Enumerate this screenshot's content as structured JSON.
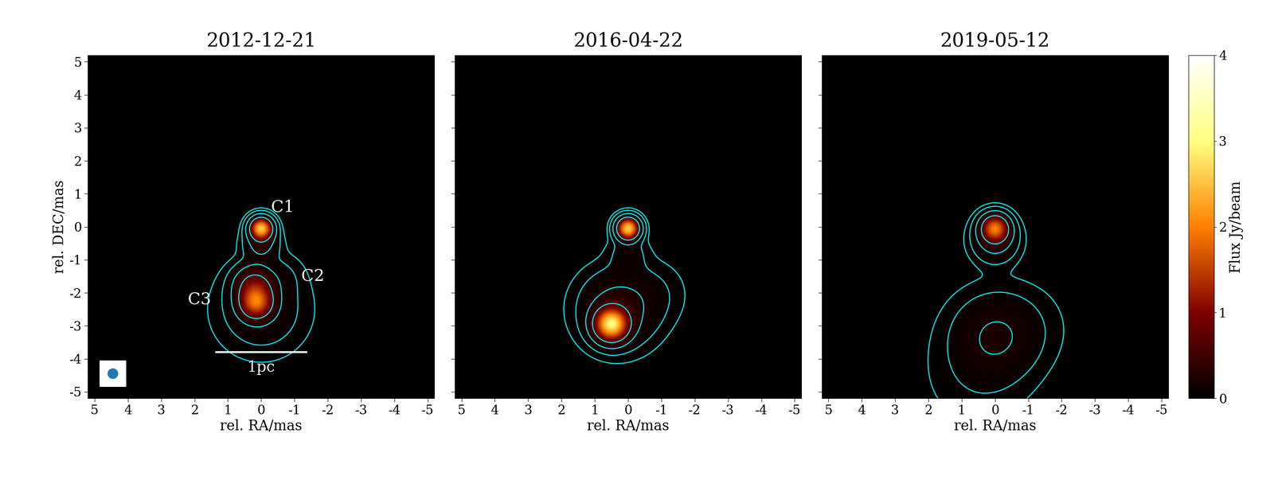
{
  "chart_data": {
    "type": "heatmap",
    "xlabel": "rel. RA/mas",
    "ylabel": "rel. DEC/mas",
    "xlim": [
      5.2,
      -5.2
    ],
    "ylim": [
      -5.2,
      5.2
    ],
    "xticks": [
      5,
      4,
      3,
      2,
      1,
      0,
      -1,
      -2,
      -3,
      -4,
      -5
    ],
    "yticks": [
      -5,
      -4,
      -3,
      -2,
      -1,
      0,
      1,
      2,
      3,
      4,
      5
    ],
    "contour_levels": [
      0.02,
      0.06,
      0.2,
      0.6
    ],
    "colorbar": {
      "label": "Flux Jy/beam",
      "range": [
        0,
        4
      ],
      "ticks": [
        0,
        1,
        2,
        3,
        4
      ]
    },
    "panels": [
      {
        "title": "2012-12-21",
        "tick_labels": true,
        "components": [
          {
            "x": 0.0,
            "y": -0.05,
            "flux": 2.5,
            "size": 0.2
          },
          {
            "x": 0.0,
            "y": -0.5,
            "flux": 0.3,
            "size": 0.3
          },
          {
            "x": 0.15,
            "y": -2.3,
            "flux": 1.6,
            "size": 0.3
          },
          {
            "x": 0.2,
            "y": -1.8,
            "flux": 0.8,
            "size": 0.35
          },
          {
            "x": 0.0,
            "y": -2.5,
            "flux": 0.15,
            "size": 0.8
          },
          {
            "x": -0.6,
            "y": -1.5,
            "flux": 0.05,
            "size": 0.4
          }
        ],
        "labels": [
          {
            "text": "C1",
            "x": -0.65,
            "y": 0.6
          },
          {
            "text": "C2",
            "x": -1.55,
            "y": -1.5
          },
          {
            "text": "C3",
            "x": 1.85,
            "y": -2.2
          }
        ],
        "scalebar": {
          "label": "1pc",
          "x": [
            1.35,
            -1.35
          ],
          "y": -3.8
        },
        "beam": {
          "x": 4.45,
          "y": -4.45,
          "size": 0.3
        }
      },
      {
        "title": "2016-04-22",
        "tick_labels": "x",
        "components": [
          {
            "x": 0.0,
            "y": -0.05,
            "flux": 2.6,
            "size": 0.2
          },
          {
            "x": 0.0,
            "y": -0.8,
            "flux": 0.1,
            "size": 0.35
          },
          {
            "x": 0.5,
            "y": -2.95,
            "flux": 2.8,
            "size": 0.3
          },
          {
            "x": 0.3,
            "y": -2.5,
            "flux": 0.3,
            "size": 0.7
          },
          {
            "x": -0.8,
            "y": -2.0,
            "flux": 0.05,
            "size": 0.6
          }
        ]
      },
      {
        "title": "2019-05-12",
        "tick_labels": "x",
        "components": [
          {
            "x": 0.0,
            "y": -0.05,
            "flux": 1.8,
            "size": 0.25
          },
          {
            "x": 0.0,
            "y": -0.4,
            "flux": 0.3,
            "size": 0.4
          },
          {
            "x": 0.0,
            "y": -3.3,
            "flux": 0.2,
            "size": 0.8
          },
          {
            "x": 0.5,
            "y": -4.5,
            "flux": 0.05,
            "size": 1.0
          },
          {
            "x": -1.0,
            "y": -3.0,
            "flux": 0.03,
            "size": 0.8
          }
        ]
      }
    ]
  }
}
